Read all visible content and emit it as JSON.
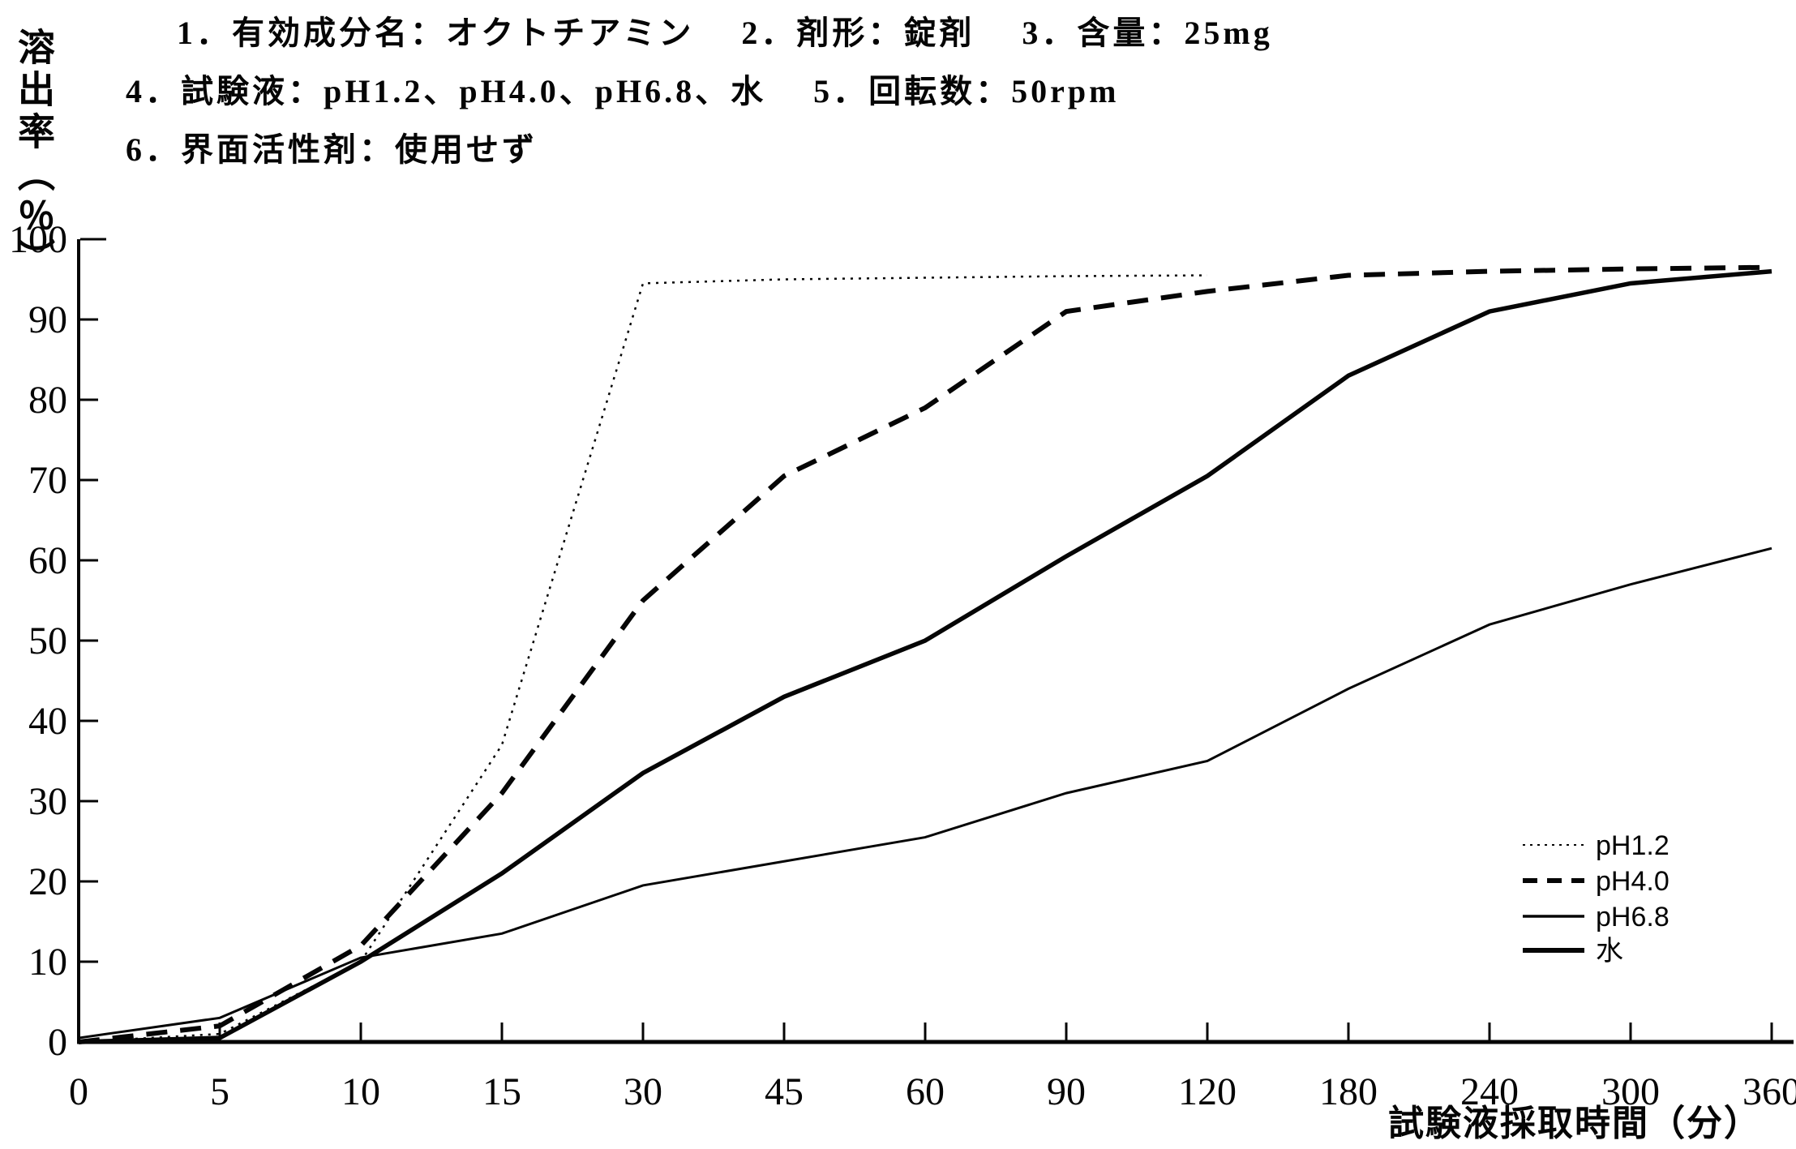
{
  "document": {
    "header_lines": [
      "1．有効成分名：オクトチアミン　 2．剤形：錠剤　 3．含量：25mg",
      "4．試験液：pH1.2、pH4.0、pH6.8、水　 5．回転数：50rpm",
      "6．界面活性剤：使用せず"
    ]
  },
  "colors": {
    "ink": "#050505",
    "background": "#ffffff"
  },
  "chart_data": {
    "type": "line",
    "title": "",
    "xlabel": "試験液採取時間（分）",
    "ylabel": "溶出率（％）",
    "x_axis_type": "categorical-evenly-spaced-ticks",
    "categories": [
      0,
      5,
      10,
      15,
      30,
      45,
      60,
      90,
      120,
      180,
      240,
      300,
      360
    ],
    "x_tick_labels": [
      "0",
      "5",
      "10",
      "15",
      "30",
      "45",
      "60",
      "90",
      "120",
      "180",
      "240",
      "300",
      "360"
    ],
    "y_ticks": [
      0,
      10,
      20,
      30,
      40,
      50,
      60,
      70,
      80,
      90,
      100
    ],
    "ylim": [
      0,
      100
    ],
    "grid": false,
    "legend_position": "lower-right",
    "series": [
      {
        "name": "pH1.2",
        "style": "dotted",
        "weight": "thin",
        "x": [
          0,
          5,
          10,
          15,
          30,
          45,
          60,
          90,
          120
        ],
        "values": [
          0,
          1,
          10,
          37,
          94.5,
          95,
          95.2,
          95.4,
          95.5
        ]
      },
      {
        "name": "pH4.0",
        "style": "dashed",
        "weight": "bold",
        "x": [
          0,
          5,
          10,
          15,
          30,
          45,
          60,
          90,
          120,
          180,
          240,
          300,
          360
        ],
        "values": [
          0,
          2,
          12,
          31,
          55,
          70.5,
          79,
          91,
          93.5,
          95.5,
          96,
          96.3,
          96.5
        ]
      },
      {
        "name": "pH6.8",
        "style": "solid",
        "weight": "thin",
        "x": [
          0,
          5,
          10,
          15,
          30,
          45,
          60,
          90,
          120,
          180,
          240,
          300,
          360
        ],
        "values": [
          0.5,
          3,
          10.5,
          13.5,
          19.5,
          22.5,
          25.5,
          31,
          35,
          44,
          52,
          57,
          61.5
        ]
      },
      {
        "name": "水",
        "style": "solid",
        "weight": "bold",
        "x": [
          0,
          5,
          10,
          15,
          30,
          45,
          60,
          90,
          120,
          180,
          240,
          300,
          360
        ],
        "values": [
          0,
          0.5,
          10,
          21,
          33.5,
          43,
          50,
          60.5,
          70.5,
          83,
          91,
          94.5,
          96
        ]
      }
    ]
  }
}
